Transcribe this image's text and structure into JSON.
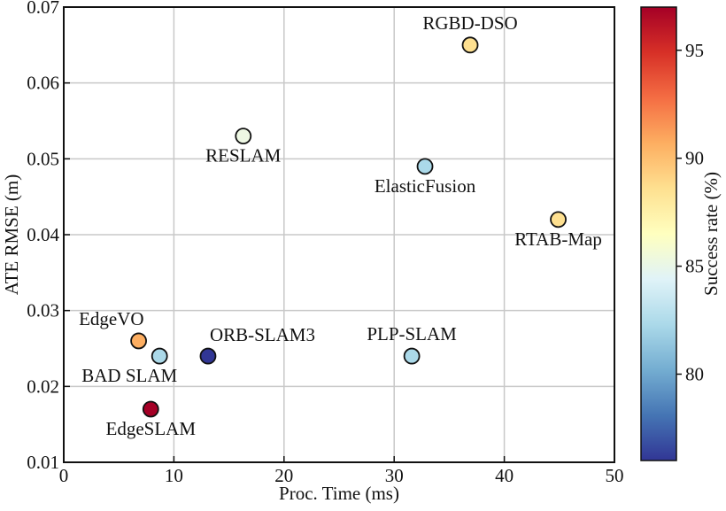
{
  "chart_data": {
    "type": "scatter",
    "title": "",
    "xlabel": "Proc. Time (ms)",
    "ylabel": "ATE RMSE (m)",
    "xlim": [
      0,
      50
    ],
    "ylim": [
      0.01,
      0.07
    ],
    "x_ticks": [
      0,
      10,
      20,
      30,
      40,
      50
    ],
    "y_ticks": [
      0.01,
      0.02,
      0.03,
      0.04,
      0.05,
      0.06,
      0.07
    ],
    "x_tick_labels": [
      "0",
      "10",
      "20",
      "30",
      "40",
      "50"
    ],
    "y_tick_labels": [
      "0.01",
      "0.02",
      "0.03",
      "0.04",
      "0.05",
      "0.06",
      "0.07"
    ],
    "grid": true,
    "colorbar": {
      "label": "Success rate (%)",
      "range": [
        76,
        97
      ],
      "ticks": [
        80,
        85,
        90,
        95
      ],
      "tick_labels": [
        "80",
        "85",
        "90",
        "95"
      ],
      "colormap": "RdYlBu_r",
      "color_stops": [
        "#313695",
        "#4575b4",
        "#74add1",
        "#abd9e9",
        "#e0f3f8",
        "#ffffbf",
        "#fee090",
        "#fdae61",
        "#f46d43",
        "#d73027",
        "#a50026"
      ]
    },
    "points": [
      {
        "label": "RGBD-DSO",
        "x": 36.9,
        "y": 0.065,
        "success_rate": 88.5,
        "color": "#fee090",
        "label_pos": "above"
      },
      {
        "label": "RESLAM",
        "x": 16.3,
        "y": 0.053,
        "success_rate": 85,
        "color": "#eef8e4",
        "label_pos": "below"
      },
      {
        "label": "ElasticFusion",
        "x": 32.8,
        "y": 0.049,
        "success_rate": 81.5,
        "color": "#abd9e9",
        "label_pos": "below"
      },
      {
        "label": "RTAB-Map",
        "x": 44.9,
        "y": 0.042,
        "success_rate": 88.5,
        "color": "#fee090",
        "label_pos": "below"
      },
      {
        "label": "EdgeVO",
        "x": 6.8,
        "y": 0.026,
        "success_rate": 91.5,
        "color": "#fdae61",
        "label_pos": "above-left"
      },
      {
        "label": "BAD SLAM",
        "x": 8.7,
        "y": 0.024,
        "success_rate": 81.5,
        "color": "#abd9e9",
        "label_pos": "below-left"
      },
      {
        "label": "ORB-SLAM3",
        "x": 13.1,
        "y": 0.024,
        "success_rate": 76.5,
        "color": "#313695",
        "label_pos": "above-right"
      },
      {
        "label": "PLP-SLAM",
        "x": 31.6,
        "y": 0.024,
        "success_rate": 81.5,
        "color": "#abd9e9",
        "label_pos": "above"
      },
      {
        "label": "EdgeSLAM",
        "x": 7.9,
        "y": 0.017,
        "success_rate": 97,
        "color": "#a50026",
        "label_pos": "below"
      }
    ]
  }
}
